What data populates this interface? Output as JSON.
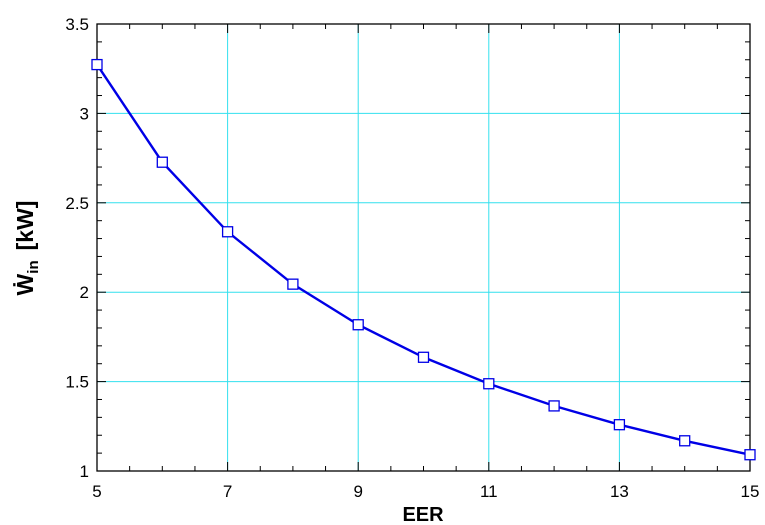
{
  "chart_data": {
    "type": "line",
    "title": "",
    "xlabel": "EER",
    "ylabel": {
      "main": "Ẇ",
      "sub": "in",
      "unit": "[kW]"
    },
    "xlim": [
      5,
      15
    ],
    "ylim": [
      1,
      3.5
    ],
    "xticks": [
      "5",
      "7",
      "9",
      "11",
      "13",
      "15"
    ],
    "yticks": [
      "1",
      "1.5",
      "2",
      "2.5",
      "3",
      "3.5"
    ],
    "grid": true,
    "grid_color": "#33e0ee",
    "line_color": "#0000e6",
    "marker": "square",
    "x": [
      5,
      6,
      7,
      8,
      9,
      10,
      11,
      12,
      13,
      14,
      15
    ],
    "values": [
      3.273,
      2.727,
      2.338,
      2.045,
      1.818,
      1.636,
      1.488,
      1.364,
      1.259,
      1.169,
      1.091
    ]
  }
}
